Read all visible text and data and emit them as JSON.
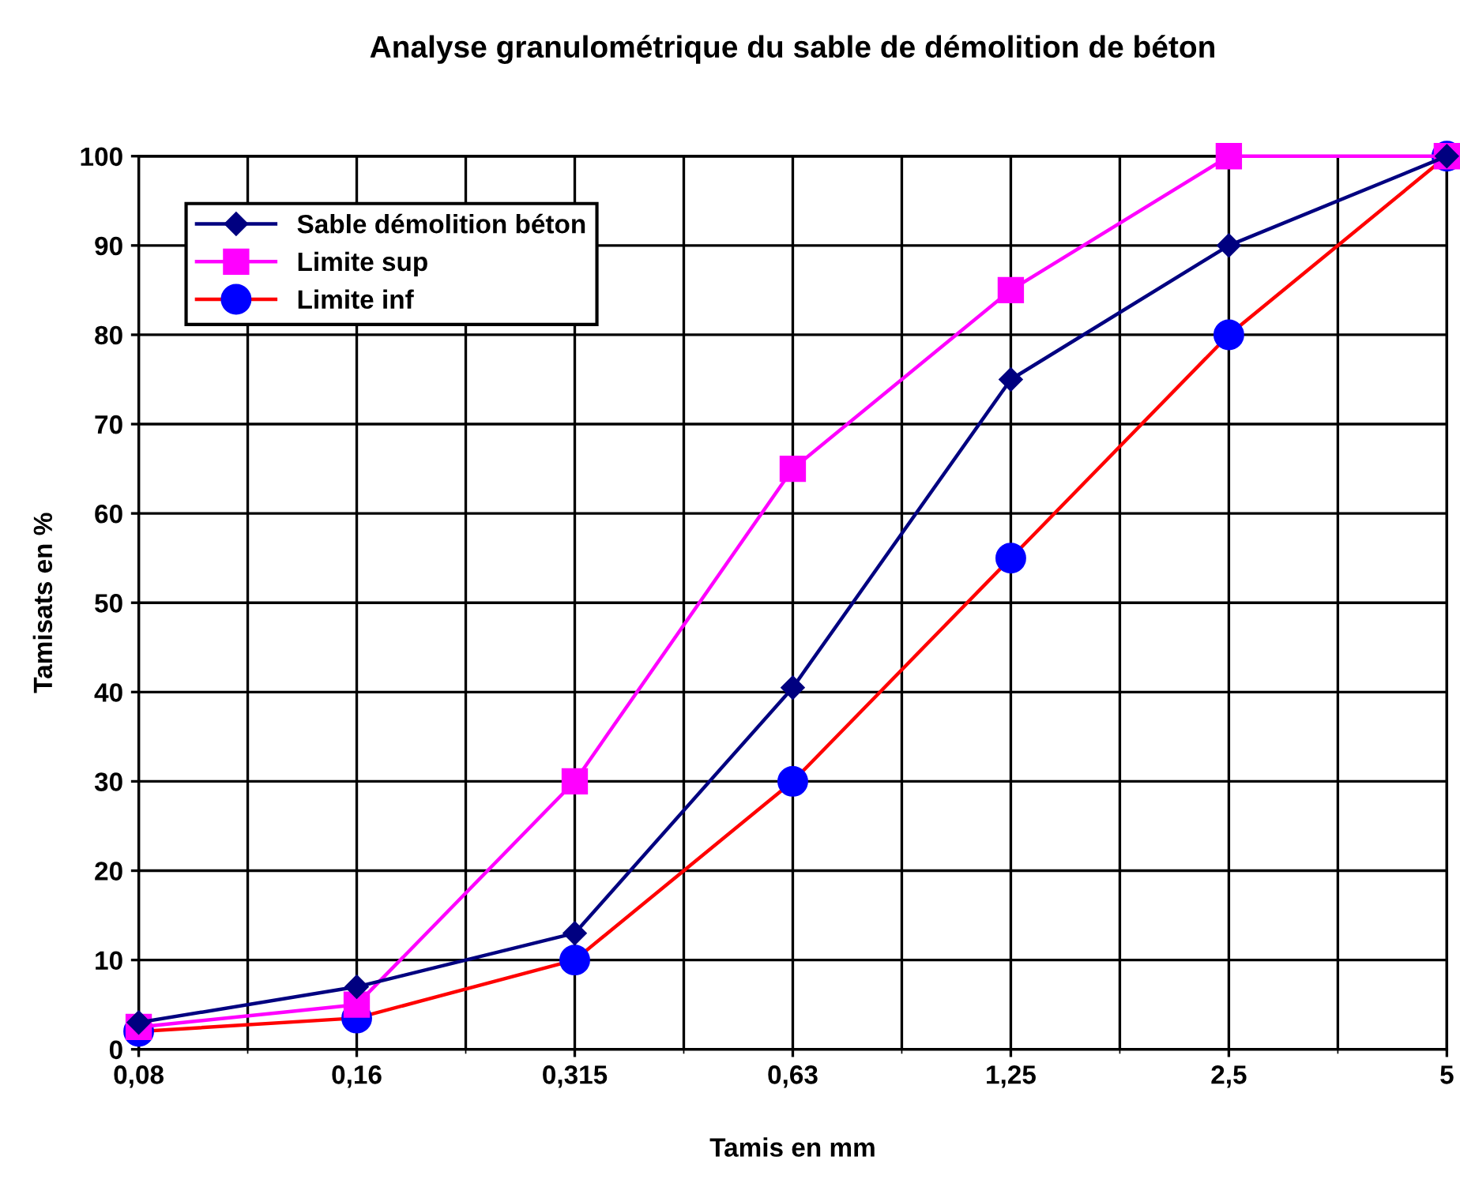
{
  "chart_data": {
    "type": "line",
    "title": "Analyse granulométrique du sable de démolition de béton",
    "xlabel": "Tamis en mm",
    "ylabel": "Tamisats en %",
    "categories": [
      "0,08",
      "0,16",
      "0,315",
      "0,63",
      "1,25",
      "2,5",
      "5"
    ],
    "series": [
      {
        "name": "Sable démolition béton",
        "color": "#000080",
        "marker": "diamond",
        "values": [
          3,
          7,
          13,
          40.5,
          75,
          90,
          100
        ]
      },
      {
        "name": "Limite sup",
        "color": "#ff00ff",
        "marker": "square",
        "values": [
          2.5,
          5,
          30,
          65,
          85,
          100,
          100
        ]
      },
      {
        "name": "Limite inf",
        "color": "#ff0000",
        "colors": [
          "#0000ff",
          "#0000ff",
          "#0000ff",
          "#0000ff",
          "#0000ff",
          "#0000ff",
          "#0000ff"
        ],
        "marker": "circle",
        "values": [
          2,
          3.5,
          10,
          30,
          55,
          80,
          100
        ]
      }
    ],
    "ylim": [
      0,
      100
    ],
    "yticks": [
      0,
      10,
      20,
      30,
      40,
      50,
      60,
      70,
      80,
      90,
      100
    ],
    "grid": true,
    "legend": "top left",
    "line_style": "solid"
  }
}
